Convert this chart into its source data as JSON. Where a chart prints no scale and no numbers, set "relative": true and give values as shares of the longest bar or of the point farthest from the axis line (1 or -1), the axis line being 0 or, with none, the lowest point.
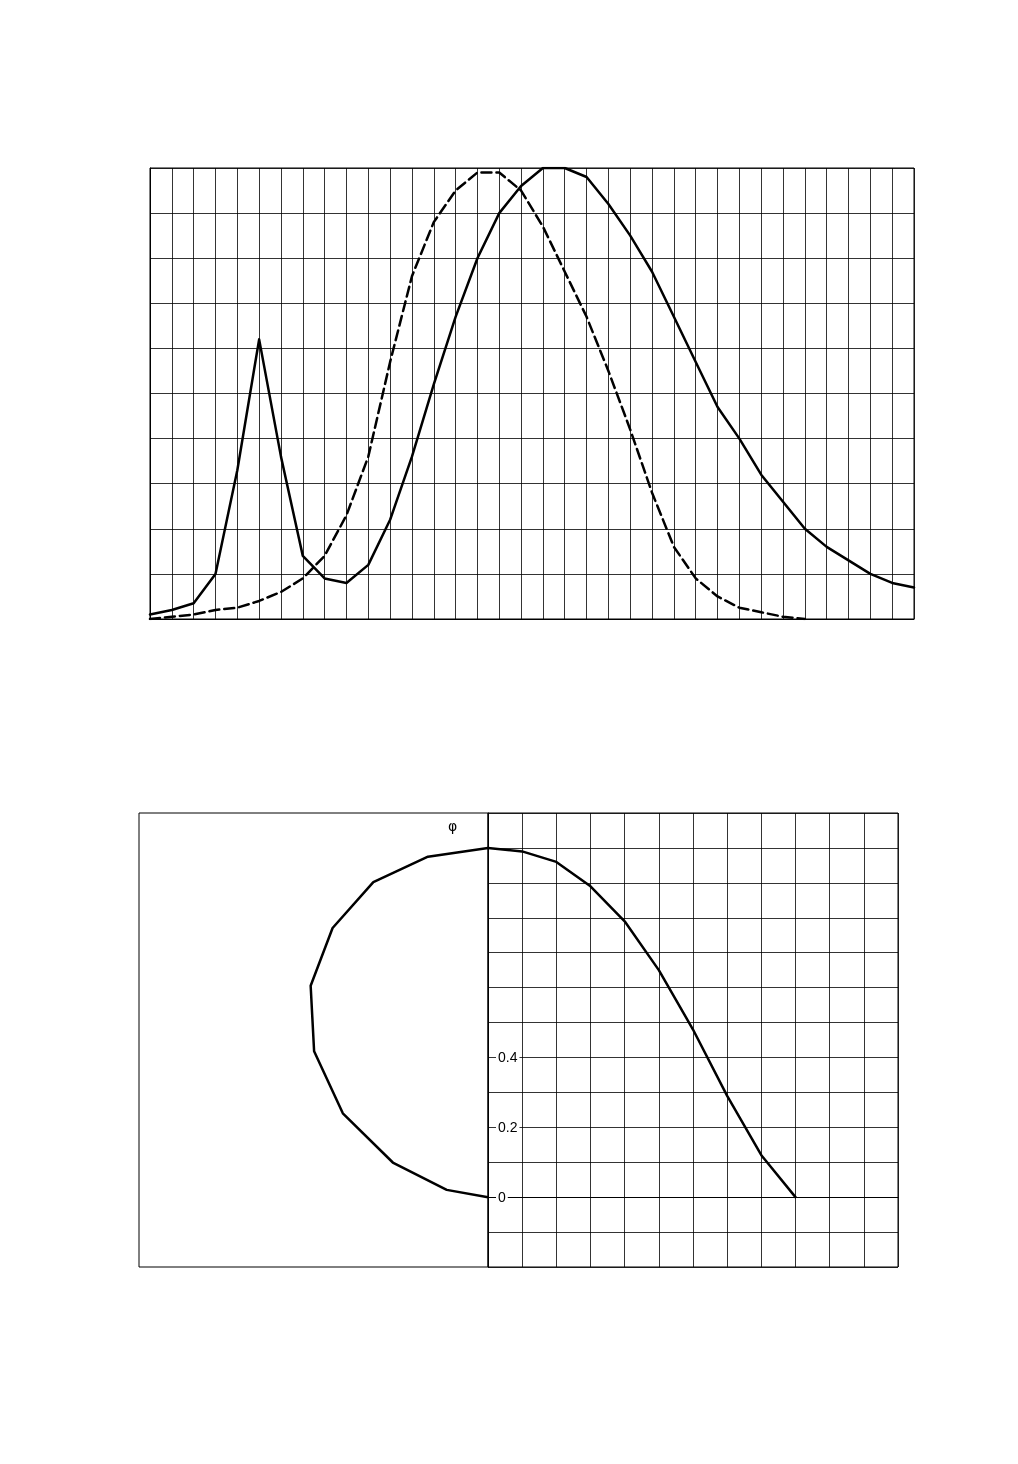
{
  "chart_data": [
    {
      "type": "line",
      "relative": true,
      "grid": true,
      "categories": [
        null,
        null,
        null,
        null,
        null,
        null,
        null,
        null,
        null,
        null,
        null,
        null,
        null,
        null,
        null,
        null,
        null,
        null,
        null,
        null,
        null,
        null,
        null,
        null,
        null,
        null,
        null,
        null,
        null,
        null,
        null,
        null,
        null,
        null,
        null,
        null
      ],
      "series": [
        {
          "color": "#000000",
          "line_style": "solid",
          "values": [
            0.01,
            0.02,
            0.035,
            0.1,
            0.33,
            0.62,
            0.36,
            0.14,
            0.09,
            0.08,
            0.12,
            0.22,
            0.36,
            0.52,
            0.67,
            0.8,
            0.9,
            0.96,
            1.0,
            1.0,
            0.98,
            0.92,
            0.85,
            0.77,
            0.67,
            0.57,
            0.47,
            0.4,
            0.32,
            0.26,
            0.2,
            0.16,
            0.13,
            0.1,
            0.08,
            0.07
          ]
        },
        {
          "color": "#000000",
          "line_style": "dashed",
          "values": [
            0,
            0.005,
            0.01,
            0.02,
            0.025,
            0.04,
            0.06,
            0.09,
            0.14,
            0.23,
            0.36,
            0.57,
            0.76,
            0.88,
            0.95,
            0.99,
            0.99,
            0.95,
            0.87,
            0.77,
            0.67,
            0.55,
            0.42,
            0.28,
            0.16,
            0.09,
            0.05,
            0.025,
            0.015,
            0.005,
            0.0,
            null,
            null,
            null,
            null,
            null
          ]
        }
      ]
    },
    {
      "type": "line",
      "grid": true,
      "tick_labels": "y",
      "annotations": [
        "φ"
      ],
      "categories": [
        null,
        null,
        null,
        null,
        null,
        null,
        null,
        null,
        null,
        null,
        null,
        null,
        null
      ],
      "ylim": [
        -0.2,
        1.1
      ],
      "yticks": [
        {
          "value": -0.2,
          "label": null
        },
        {
          "value": -0.1,
          "label": null
        },
        0,
        {
          "value": 0.1,
          "label": null
        },
        0.2,
        {
          "value": 0.3,
          "label": null
        },
        0.4,
        {
          "value": 0.5,
          "label": null
        },
        {
          "value": 0.6,
          "label": null
        },
        {
          "value": 0.7,
          "label": null
        },
        {
          "value": 0.8,
          "label": null
        },
        {
          "value": 0.9,
          "label": null
        },
        {
          "value": 1.0,
          "label": null
        },
        {
          "value": 1.1,
          "label": null
        }
      ],
      "series": [
        {
          "color": "#000000",
          "line_style": "solid",
          "values": [
            1.0,
            0.99,
            0.96,
            0.89,
            0.79,
            0.65,
            0.48,
            0.29,
            0.12,
            0.0,
            null,
            null,
            null
          ]
        }
      ]
    }
  ]
}
